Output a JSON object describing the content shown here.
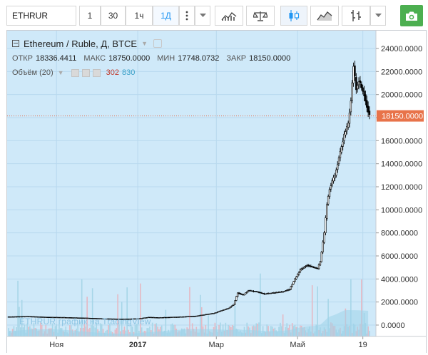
{
  "toolbar": {
    "symbol": "ETHRUR",
    "intervals": [
      "1",
      "30",
      "1ч",
      "1Д"
    ],
    "active_interval": "1Д"
  },
  "legend": {
    "title": "Ethereum / Ruble, Д, BTCE",
    "ohlc": [
      {
        "label": "ОТКР",
        "value": "18336.4411"
      },
      {
        "label": "МАКС",
        "value": "18750.0000"
      },
      {
        "label": "МИН",
        "value": "17748.0732"
      },
      {
        "label": "ЗАКР",
        "value": "18150.0000"
      }
    ],
    "volume_label": "Объём (20)",
    "volume_value_1": "302",
    "volume_value_2": "830"
  },
  "watermark": "ETHRUR график на TradingView",
  "colors": {
    "accent": "#2196f3",
    "last_price_badge": "#e8734a",
    "camera": "#4caf50",
    "candle": "#000000",
    "volume": "#9fd3ea",
    "volume_ma": "#9fd3ea"
  },
  "chart_data": {
    "type": "candlestick",
    "symbol": "ETHRUR",
    "exchange": "BTCE",
    "interval": "Д",
    "y_axis": {
      "min": 0,
      "max": 24000,
      "ticks": [
        "0.0000",
        "2000.0000",
        "4000.0000",
        "6000.0000",
        "8000.0000",
        "10000.0000",
        "12000.0000",
        "14000.0000",
        "16000.0000",
        "18000.0000",
        "20000.0000",
        "22000.0000",
        "24000.0000"
      ]
    },
    "x_axis": {
      "ticks": [
        {
          "label": "Ноя",
          "date": "2016-11-01"
        },
        {
          "label": "2017",
          "date": "2017-01-01"
        },
        {
          "label": "Мар",
          "date": "2017-03-01"
        },
        {
          "label": "Май",
          "date": "2017-05-01"
        },
        {
          "label": "19",
          "date": "2017-06-19"
        }
      ],
      "range": [
        "2016-09-26",
        "2017-06-24"
      ]
    },
    "last_price": "18150.0000",
    "series": [
      {
        "points": [
          [
            "2016-09-26",
            720
          ],
          [
            "2016-10-10",
            750
          ],
          [
            "2016-10-24",
            690
          ],
          [
            "2016-11-07",
            660
          ],
          [
            "2016-11-21",
            620
          ],
          [
            "2016-12-05",
            560
          ],
          [
            "2016-12-19",
            520
          ],
          [
            "2017-01-02",
            560
          ],
          [
            "2017-01-09",
            680
          ],
          [
            "2017-01-16",
            650
          ],
          [
            "2017-01-30",
            700
          ],
          [
            "2017-02-13",
            780
          ],
          [
            "2017-02-27",
            1020
          ],
          [
            "2017-03-06",
            1300
          ],
          [
            "2017-03-10",
            1450
          ],
          [
            "2017-03-14",
            1800
          ],
          [
            "2017-03-17",
            2800
          ],
          [
            "2017-03-21",
            2600
          ],
          [
            "2017-03-25",
            3000
          ],
          [
            "2017-03-31",
            2900
          ],
          [
            "2017-04-06",
            2700
          ],
          [
            "2017-04-13",
            2800
          ],
          [
            "2017-04-20",
            2900
          ],
          [
            "2017-04-25",
            3100
          ],
          [
            "2017-04-29",
            4000
          ],
          [
            "2017-05-03",
            4800
          ],
          [
            "2017-05-08",
            5200
          ],
          [
            "2017-05-13",
            5000
          ],
          [
            "2017-05-16",
            4900
          ],
          [
            "2017-05-18",
            5500
          ],
          [
            "2017-05-21",
            8000
          ],
          [
            "2017-05-23",
            10500
          ],
          [
            "2017-05-25",
            11800
          ],
          [
            "2017-05-27",
            12500
          ],
          [
            "2017-05-29",
            13000
          ],
          [
            "2017-05-31",
            14000
          ],
          [
            "2017-06-02",
            15000
          ],
          [
            "2017-06-05",
            16500
          ],
          [
            "2017-06-08",
            17500
          ],
          [
            "2017-06-10",
            19500
          ],
          [
            "2017-06-12",
            22500
          ],
          [
            "2017-06-14",
            20500
          ],
          [
            "2017-06-16",
            21200
          ],
          [
            "2017-06-18",
            20600
          ],
          [
            "2017-06-20",
            20000
          ],
          [
            "2017-06-22",
            19000
          ],
          [
            "2017-06-24",
            18150
          ]
        ]
      }
    ]
  }
}
